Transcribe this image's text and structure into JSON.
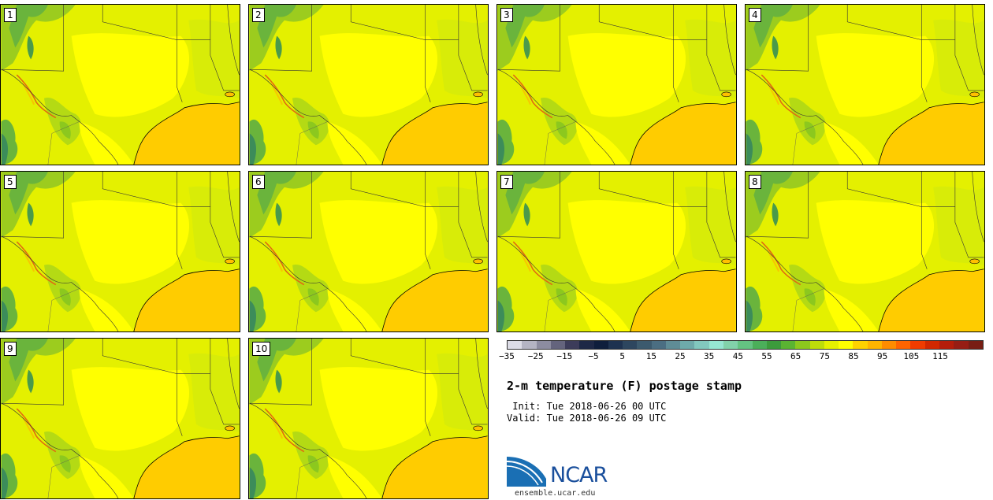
{
  "panels": [
    {
      "label": "1"
    },
    {
      "label": "2"
    },
    {
      "label": "3"
    },
    {
      "label": "4"
    },
    {
      "label": "5"
    },
    {
      "label": "6"
    },
    {
      "label": "7"
    },
    {
      "label": "8"
    },
    {
      "label": "9"
    },
    {
      "label": "10"
    }
  ],
  "colorbar": {
    "colors": [
      "#dcdce6",
      "#b4b4c3",
      "#8c8ca0",
      "#64647d",
      "#3c3c5a",
      "#1e2846",
      "#0f1e3c",
      "#1e3250",
      "#2d465f",
      "#3c5a6e",
      "#4b6e82",
      "#5f8c96",
      "#6eaaaa",
      "#82c8be",
      "#96e6d2",
      "#82d2aa",
      "#64c382",
      "#4baf5a",
      "#3c9b3c",
      "#5ab432",
      "#8cc81e",
      "#bedc0a",
      "#e6f000",
      "#ffff00",
      "#ffd200",
      "#ffb400",
      "#ff8c00",
      "#ff6400",
      "#f03c00",
      "#d22800",
      "#b41e0a",
      "#961e14",
      "#781e14"
    ],
    "tick_labels": [
      "−35",
      "−25",
      "−15",
      "−5",
      "5",
      "15",
      "25",
      "35",
      "45",
      "55",
      "65",
      "75",
      "85",
      "95",
      "105",
      "115"
    ]
  },
  "title": "2-m temperature (F) postage stamp",
  "init_line": " Init: Tue 2018-06-26 00 UTC",
  "valid_line": "Valid: Tue 2018-06-26 09 UTC",
  "logo": {
    "name": "NCAR",
    "url": "ensemble.ucar.edu"
  }
}
